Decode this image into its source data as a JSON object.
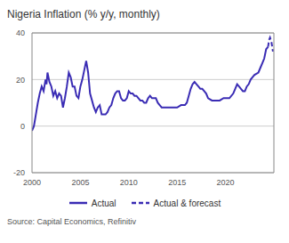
{
  "chart_data": {
    "type": "line",
    "title": "Nigeria Inflation (% y/y, monthly)",
    "source": "Source: Capital Economics, Refinitiv",
    "xlim": [
      2000,
      2025
    ],
    "xticks": [
      2000,
      2005,
      2010,
      2015,
      2020
    ],
    "ylim": [
      -20,
      40
    ],
    "yticks": [
      -20,
      0,
      20,
      40
    ],
    "grid": true,
    "legend": "bottom",
    "series": [
      {
        "name": "Actual",
        "color": "#3a2cb4",
        "line_style": "solid",
        "x": [
          2000.0,
          2000.2,
          2000.4,
          2000.6,
          2000.8,
          2001.0,
          2001.2,
          2001.4,
          2001.5,
          2001.6,
          2001.8,
          2002.0,
          2002.2,
          2002.4,
          2002.6,
          2002.8,
          2003.0,
          2003.2,
          2003.4,
          2003.6,
          2003.8,
          2004.0,
          2004.2,
          2004.4,
          2004.6,
          2004.8,
          2005.0,
          2005.2,
          2005.4,
          2005.6,
          2005.8,
          2006.0,
          2006.2,
          2006.4,
          2006.6,
          2006.8,
          2007.0,
          2007.2,
          2007.4,
          2007.6,
          2007.8,
          2008.0,
          2008.2,
          2008.4,
          2008.6,
          2008.8,
          2009.0,
          2009.2,
          2009.4,
          2009.6,
          2009.8,
          2010.0,
          2010.2,
          2010.4,
          2010.6,
          2010.8,
          2011.0,
          2011.2,
          2011.4,
          2011.6,
          2011.8,
          2012.0,
          2012.2,
          2012.4,
          2012.6,
          2012.8,
          2013.0,
          2013.2,
          2013.4,
          2013.6,
          2013.8,
          2014.0,
          2014.4,
          2014.8,
          2015.0,
          2015.4,
          2015.8,
          2016.0,
          2016.2,
          2016.4,
          2016.6,
          2016.8,
          2017.0,
          2017.2,
          2017.4,
          2017.6,
          2017.8,
          2018.0,
          2018.2,
          2018.6,
          2019.0,
          2019.4,
          2019.8,
          2020.0,
          2020.4,
          2020.8,
          2021.0,
          2021.2,
          2021.4,
          2021.6,
          2021.8,
          2022.0,
          2022.2,
          2022.4,
          2022.6,
          2022.8,
          2023.0,
          2023.4,
          2023.6,
          2023.8,
          2024.0,
          2024.2,
          2024.4
        ],
        "values": [
          -2,
          0,
          5,
          10,
          14,
          17,
          15,
          20,
          18,
          23,
          19,
          17,
          13,
          15,
          12,
          14,
          13,
          8,
          12,
          17,
          23,
          21,
          17,
          17,
          13,
          12,
          17,
          20,
          24,
          28,
          23,
          14,
          11,
          8,
          6,
          8,
          9,
          5,
          5,
          5,
          6,
          8,
          9,
          12,
          14,
          15,
          15,
          12,
          11,
          11,
          12,
          15,
          14,
          14,
          13,
          13,
          12,
          11,
          11,
          10,
          10,
          12,
          13,
          12,
          12,
          12,
          10,
          9,
          8,
          8,
          8,
          8,
          8,
          8,
          8,
          9,
          9,
          10,
          13,
          16,
          18,
          19,
          18,
          17,
          16,
          16,
          15,
          14,
          12,
          11,
          11,
          11,
          12,
          12,
          12,
          14,
          16,
          18,
          17,
          16,
          15,
          15,
          17,
          18,
          20,
          21,
          22,
          23,
          25,
          27,
          29,
          33,
          34
        ]
      },
      {
        "name": "Actual & forecast",
        "color": "#3a2cb4",
        "line_style": "dashed",
        "x": [
          2024.4,
          2024.5,
          2024.6,
          2024.75,
          2024.9
        ],
        "values": [
          34,
          37,
          38,
          36,
          32
        ]
      }
    ]
  }
}
